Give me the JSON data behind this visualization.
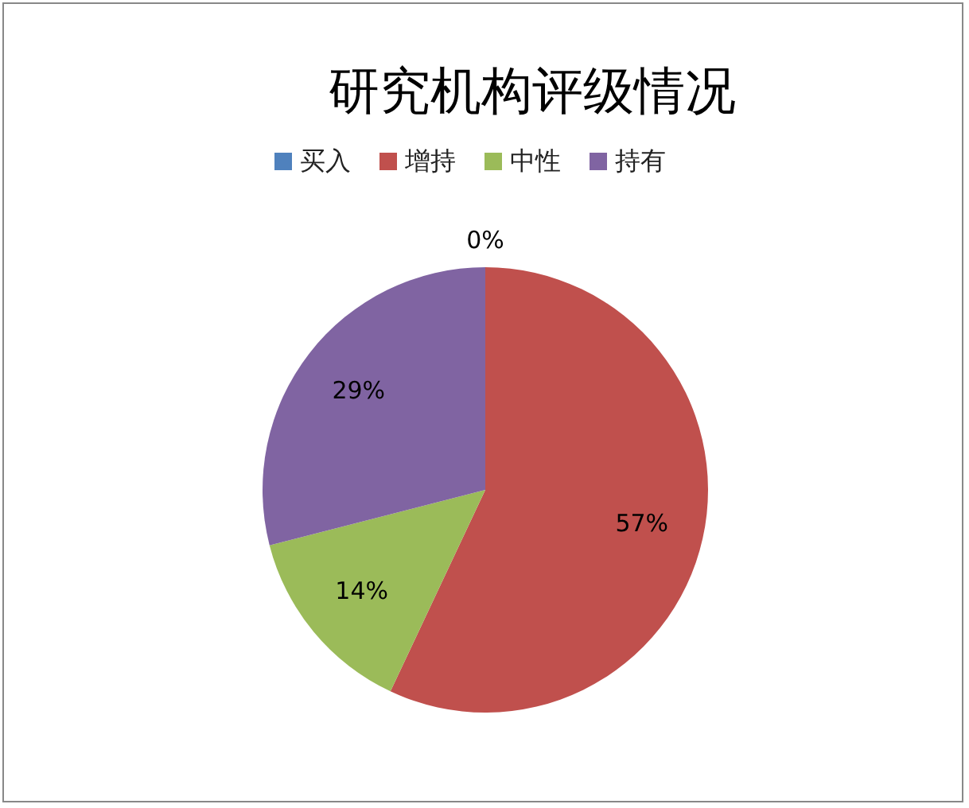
{
  "chart_data": {
    "type": "pie",
    "title": "研究机构评级情况",
    "categories": [
      "买入",
      "增持",
      "中性",
      "持有"
    ],
    "values": [
      0,
      57,
      14,
      29
    ],
    "colors": [
      "#4f81bd",
      "#c0504d",
      "#9bbb59",
      "#8064a2"
    ],
    "value_labels": [
      "0%",
      "57%",
      "14%",
      "29%"
    ],
    "legend": "top"
  }
}
